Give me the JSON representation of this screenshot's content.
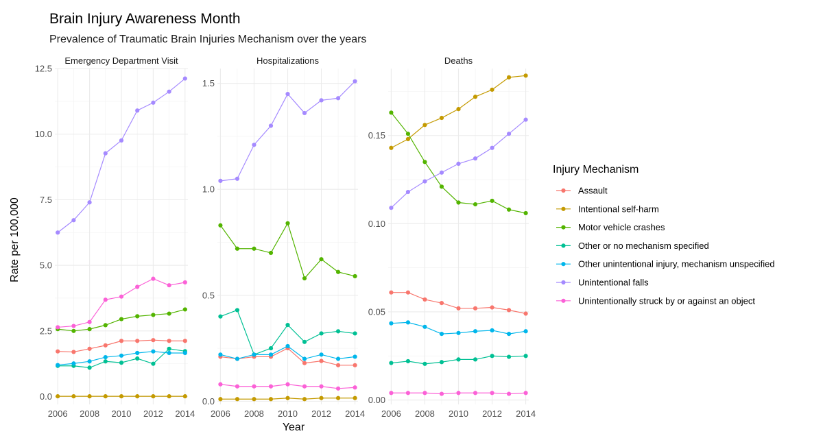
{
  "title": "Brain Injury Awareness Month",
  "subtitle": "Prevalence of Traumatic Brain Injuries Mechanism over the years",
  "xlabel": "Year",
  "ylabel": "Rate per 100,000",
  "legend": {
    "title": "Injury Mechanism",
    "placement": "right"
  },
  "chart_data": {
    "type": "line",
    "x": [
      2006,
      2007,
      2008,
      2009,
      2010,
      2011,
      2012,
      2013,
      2014
    ],
    "x_ticks": [
      2006,
      2008,
      2010,
      2012,
      2014
    ],
    "x_tick_labels": [
      "2006",
      "2008",
      "2010",
      "2012",
      "2014"
    ],
    "grid": true,
    "series_meta": [
      {
        "name": "Assault",
        "color": "#F8766D"
      },
      {
        "name": "Intentional self-harm",
        "color": "#C49A00"
      },
      {
        "name": "Motor vehicle crashes",
        "color": "#53B400"
      },
      {
        "name": "Other or no mechanism specified",
        "color": "#00C094"
      },
      {
        "name": "Other unintentional injury, mechanism unspecified",
        "color": "#00B6EB"
      },
      {
        "name": "Unintentional falls",
        "color": "#A58AFF"
      },
      {
        "name": "Unintentionally struck by or against an object",
        "color": "#FB61D7"
      }
    ],
    "panels": [
      {
        "title": "Emergency Department Visit",
        "ylim": [
          -0.3,
          12.5
        ],
        "y_ticks": [
          0,
          2.5,
          5,
          7.5,
          10,
          12.5
        ],
        "y_tick_labels": [
          "0.0",
          "2.5",
          "5.0",
          "7.5",
          "10.0",
          "12.5"
        ],
        "series": [
          {
            "name": "Assault",
            "values": [
              1.72,
              1.7,
              1.82,
              1.95,
              2.12,
              2.12,
              2.15,
              2.12,
              2.12
            ]
          },
          {
            "name": "Intentional self-harm",
            "values": [
              0.01,
              0.01,
              0.01,
              0.01,
              0.01,
              0.01,
              0.01,
              0.01,
              0.01
            ]
          },
          {
            "name": "Motor vehicle crashes",
            "values": [
              2.57,
              2.5,
              2.57,
              2.72,
              2.95,
              3.06,
              3.11,
              3.16,
              3.32
            ]
          },
          {
            "name": "Other or no mechanism specified",
            "values": [
              1.17,
              1.17,
              1.1,
              1.34,
              1.29,
              1.45,
              1.25,
              1.82,
              1.73
            ]
          },
          {
            "name": "Other unintentional injury, mechanism unspecified",
            "values": [
              1.2,
              1.26,
              1.34,
              1.5,
              1.56,
              1.66,
              1.72,
              1.66,
              1.66
            ]
          },
          {
            "name": "Unintentional falls",
            "values": [
              6.25,
              6.72,
              7.4,
              9.27,
              9.76,
              10.9,
              11.2,
              11.62,
              12.12
            ]
          },
          {
            "name": "Unintentionally struck by or against an object",
            "values": [
              2.64,
              2.69,
              2.84,
              3.69,
              3.81,
              4.18,
              4.49,
              4.24,
              4.35
            ]
          }
        ]
      },
      {
        "title": "Hospitalizations",
        "ylim": [
          -0.015,
          1.57
        ],
        "y_ticks": [
          0,
          0.5,
          1.0,
          1.5
        ],
        "y_tick_labels": [
          "0.0",
          "0.5",
          "1.0",
          "1.5"
        ],
        "series": [
          {
            "name": "Assault",
            "values": [
              0.21,
              0.2,
              0.21,
              0.21,
              0.25,
              0.18,
              0.19,
              0.17,
              0.17
            ]
          },
          {
            "name": "Intentional self-harm",
            "values": [
              0.01,
              0.01,
              0.01,
              0.01,
              0.015,
              0.01,
              0.015,
              0.015,
              0.015
            ]
          },
          {
            "name": "Motor vehicle crashes",
            "values": [
              0.83,
              0.72,
              0.72,
              0.7,
              0.84,
              0.58,
              0.67,
              0.61,
              0.59
            ]
          },
          {
            "name": "Other or no mechanism specified",
            "values": [
              0.4,
              0.43,
              0.22,
              0.25,
              0.36,
              0.28,
              0.32,
              0.33,
              0.32
            ]
          },
          {
            "name": "Other unintentional injury, mechanism unspecified",
            "values": [
              0.22,
              0.2,
              0.22,
              0.22,
              0.26,
              0.2,
              0.22,
              0.2,
              0.21
            ]
          },
          {
            "name": "Unintentional falls",
            "values": [
              1.04,
              1.05,
              1.21,
              1.3,
              1.45,
              1.36,
              1.42,
              1.43,
              1.51
            ]
          },
          {
            "name": "Unintentionally struck by or against an object",
            "values": [
              0.08,
              0.07,
              0.07,
              0.07,
              0.08,
              0.07,
              0.07,
              0.06,
              0.065
            ]
          }
        ]
      },
      {
        "title": "Deaths",
        "ylim": [
          -0.0025,
          0.188
        ],
        "y_ticks": [
          0,
          0.05,
          0.1,
          0.15
        ],
        "y_tick_labels": [
          "0.00",
          "0.05",
          "0.10",
          "0.15"
        ],
        "series": [
          {
            "name": "Assault",
            "values": [
              0.061,
              0.061,
              0.057,
              0.055,
              0.052,
              0.052,
              0.0525,
              0.051,
              0.049
            ]
          },
          {
            "name": "Intentional self-harm",
            "values": [
              0.143,
              0.148,
              0.156,
              0.16,
              0.165,
              0.172,
              0.176,
              0.183,
              0.184
            ]
          },
          {
            "name": "Motor vehicle crashes",
            "values": [
              0.163,
              0.151,
              0.135,
              0.121,
              0.112,
              0.111,
              0.113,
              0.108,
              0.106
            ]
          },
          {
            "name": "Other or no mechanism specified",
            "values": [
              0.021,
              0.022,
              0.0205,
              0.0215,
              0.023,
              0.023,
              0.025,
              0.0245,
              0.025
            ]
          },
          {
            "name": "Other unintentional injury, mechanism unspecified",
            "values": [
              0.0435,
              0.044,
              0.0415,
              0.0375,
              0.038,
              0.039,
              0.0395,
              0.0375,
              0.039
            ]
          },
          {
            "name": "Unintentional falls",
            "values": [
              0.109,
              0.118,
              0.124,
              0.129,
              0.134,
              0.137,
              0.143,
              0.151,
              0.159
            ]
          },
          {
            "name": "Unintentionally struck by or against an object",
            "values": [
              0.004,
              0.004,
              0.004,
              0.0035,
              0.004,
              0.004,
              0.004,
              0.0035,
              0.004
            ]
          }
        ]
      }
    ]
  }
}
